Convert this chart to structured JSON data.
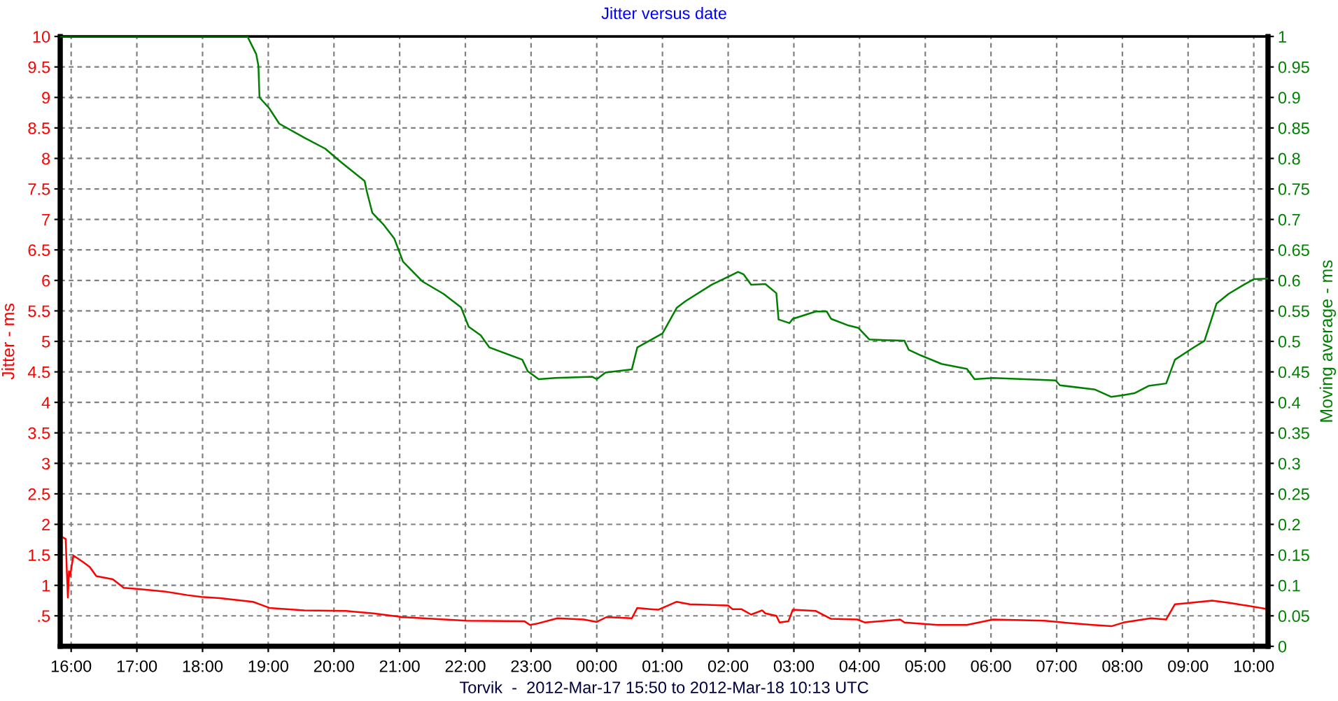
{
  "chart_data": {
    "type": "line",
    "title": "Jitter versus date",
    "xlabel": "Torvik  -  2012-Mar-17 15:50 to 2012-Mar-18 10:13 UTC",
    "ylabel": "Jitter - ms",
    "y2label": "Moving average - ms",
    "grid": true,
    "xlim": [
      "2012-03-17T15:50",
      "2012-03-18T10:13"
    ],
    "xticks": [
      {
        "value": "2012-03-17T16:00",
        "label": "16:00"
      },
      {
        "value": "2012-03-17T17:00",
        "label": "17:00"
      },
      {
        "value": "2012-03-17T18:00",
        "label": "18:00"
      },
      {
        "value": "2012-03-17T19:00",
        "label": "19:00"
      },
      {
        "value": "2012-03-17T20:00",
        "label": "20:00"
      },
      {
        "value": "2012-03-17T21:00",
        "label": "21:00"
      },
      {
        "value": "2012-03-17T22:00",
        "label": "22:00"
      },
      {
        "value": "2012-03-17T23:00",
        "label": "23:00"
      },
      {
        "value": "2012-03-18T00:00",
        "label": "00:00"
      },
      {
        "value": "2012-03-18T01:00",
        "label": "01:00"
      },
      {
        "value": "2012-03-18T02:00",
        "label": "02:00"
      },
      {
        "value": "2012-03-18T03:00",
        "label": "03:00"
      },
      {
        "value": "2012-03-18T04:00",
        "label": "04:00"
      },
      {
        "value": "2012-03-18T05:00",
        "label": "05:00"
      },
      {
        "value": "2012-03-18T06:00",
        "label": "06:00"
      },
      {
        "value": "2012-03-18T07:00",
        "label": "07:00"
      },
      {
        "value": "2012-03-18T08:00",
        "label": "08:00"
      },
      {
        "value": "2012-03-18T09:00",
        "label": "09:00"
      },
      {
        "value": "2012-03-18T10:00",
        "label": "10:00"
      }
    ],
    "ylim": [
      0,
      10
    ],
    "yticks": [
      {
        "value": 0.5,
        "label": ".5"
      },
      1,
      1.5,
      2,
      2.5,
      3,
      3.5,
      4,
      4.5,
      5,
      5.5,
      6,
      6.5,
      7,
      7.5,
      8,
      8.5,
      9,
      9.5,
      10
    ],
    "y2lim": [
      0,
      1
    ],
    "y2ticks": [
      0,
      0.05,
      0.1,
      0.15,
      0.2,
      0.25,
      0.3,
      0.35,
      0.4,
      0.45,
      0.5,
      0.55,
      0.6,
      0.65,
      0.7,
      0.75,
      0.8,
      0.85,
      0.9,
      0.95,
      1
    ],
    "series": [
      {
        "color": "#ff0000",
        "x": [
          "2012-03-17T15:50",
          "2012-03-17T15:55",
          "2012-03-17T15:56",
          "2012-03-17T15:57",
          "2012-03-17T15:58",
          "2012-03-17T15:59",
          "2012-03-17T16:02",
          "2012-03-17T16:11",
          "2012-03-17T16:17",
          "2012-03-17T16:23",
          "2012-03-17T16:38",
          "2012-03-17T16:43",
          "2012-03-17T16:48",
          "2012-03-17T17:02",
          "2012-03-17T17:25",
          "2012-03-17T17:46",
          "2012-03-17T17:59",
          "2012-03-17T18:16",
          "2012-03-17T18:46",
          "2012-03-17T18:52",
          "2012-03-17T19:01",
          "2012-03-17T19:33",
          "2012-03-17T20:11",
          "2012-03-17T20:36",
          "2012-03-17T21:02",
          "2012-03-17T22:01",
          "2012-03-17T22:54",
          "2012-03-17T22:59",
          "2012-03-17T23:05",
          "2012-03-17T23:24",
          "2012-03-17T23:48",
          "2012-03-18T00:00",
          "2012-03-18T00:09",
          "2012-03-18T00:32",
          "2012-03-18T00:37",
          "2012-03-18T00:49",
          "2012-03-18T00:56",
          "2012-03-18T01:13",
          "2012-03-18T01:25",
          "2012-03-18T02:00",
          "2012-03-18T02:04",
          "2012-03-18T02:12",
          "2012-03-18T02:21",
          "2012-03-18T02:31",
          "2012-03-18T02:34",
          "2012-03-18T02:44",
          "2012-03-18T02:47",
          "2012-03-18T02:55",
          "2012-03-18T02:59",
          "2012-03-18T03:20",
          "2012-03-18T03:34",
          "2012-03-18T03:58",
          "2012-03-18T04:05",
          "2012-03-18T04:37",
          "2012-03-18T04:41",
          "2012-03-18T05:11",
          "2012-03-18T05:38",
          "2012-03-18T06:02",
          "2012-03-18T06:49",
          "2012-03-18T07:06",
          "2012-03-18T07:33",
          "2012-03-18T07:50",
          "2012-03-18T08:01",
          "2012-03-18T08:26",
          "2012-03-18T08:40",
          "2012-03-18T08:48",
          "2012-03-18T09:00",
          "2012-03-18T09:22",
          "2012-03-18T09:39",
          "2012-03-18T10:13"
        ],
        "values": [
          1.81,
          1.76,
          1.26,
          0.8,
          1.23,
          1.15,
          1.49,
          1.38,
          1.3,
          1.15,
          1.1,
          1.03,
          0.96,
          0.94,
          0.9,
          0.84,
          0.81,
          0.79,
          0.73,
          0.69,
          0.63,
          0.59,
          0.58,
          0.54,
          0.48,
          0.42,
          0.41,
          0.35,
          0.37,
          0.46,
          0.44,
          0.4,
          0.48,
          0.46,
          0.63,
          0.61,
          0.6,
          0.73,
          0.69,
          0.67,
          0.61,
          0.61,
          0.52,
          0.59,
          0.54,
          0.5,
          0.39,
          0.41,
          0.6,
          0.58,
          0.45,
          0.44,
          0.39,
          0.44,
          0.39,
          0.35,
          0.35,
          0.44,
          0.42,
          0.39,
          0.35,
          0.33,
          0.39,
          0.46,
          0.44,
          0.69,
          0.71,
          0.75,
          0.71,
          0.61
        ]
      },
      {
        "color": "#008000",
        "axis": "y2",
        "x": [
          "2012-03-17T15:50",
          "2012-03-17T18:41",
          "2012-03-17T18:49",
          "2012-03-17T18:51",
          "2012-03-17T18:52",
          "2012-03-17T19:01",
          "2012-03-17T19:10",
          "2012-03-17T19:33",
          "2012-03-17T19:52",
          "2012-03-17T20:07",
          "2012-03-17T20:28",
          "2012-03-17T20:30",
          "2012-03-17T20:35",
          "2012-03-17T20:45",
          "2012-03-17T20:55",
          "2012-03-17T21:03",
          "2012-03-17T21:21",
          "2012-03-17T21:40",
          "2012-03-17T21:56",
          "2012-03-17T22:03",
          "2012-03-17T22:14",
          "2012-03-17T22:22",
          "2012-03-17T22:52",
          "2012-03-17T22:57",
          "2012-03-17T23:07",
          "2012-03-17T23:22",
          "2012-03-17T23:56",
          "2012-03-18T00:00",
          "2012-03-18T00:08",
          "2012-03-18T00:32",
          "2012-03-18T00:37",
          "2012-03-18T01:00",
          "2012-03-18T01:13",
          "2012-03-18T01:21",
          "2012-03-18T01:45",
          "2012-03-18T02:00",
          "2012-03-18T02:09",
          "2012-03-18T02:14",
          "2012-03-18T02:21",
          "2012-03-18T02:34",
          "2012-03-18T02:44",
          "2012-03-18T02:46",
          "2012-03-18T02:56",
          "2012-03-18T02:59",
          "2012-03-18T03:20",
          "2012-03-18T03:30",
          "2012-03-18T03:34",
          "2012-03-18T03:50",
          "2012-03-18T03:59",
          "2012-03-18T04:09",
          "2012-03-18T04:41",
          "2012-03-18T04:45",
          "2012-03-18T04:56",
          "2012-03-18T05:15",
          "2012-03-18T05:38",
          "2012-03-18T05:45",
          "2012-03-18T06:02",
          "2012-03-18T06:59",
          "2012-03-18T07:03",
          "2012-03-18T07:35",
          "2012-03-18T07:50",
          "2012-03-18T08:01",
          "2012-03-18T08:11",
          "2012-03-18T08:24",
          "2012-03-18T08:40",
          "2012-03-18T08:48",
          "2012-03-18T09:05",
          "2012-03-18T09:15",
          "2012-03-18T09:26",
          "2012-03-18T09:37",
          "2012-03-18T09:51",
          "2012-03-18T10:00",
          "2012-03-18T10:13"
        ],
        "values": [
          1,
          1,
          0.971,
          0.952,
          0.9,
          0.882,
          0.857,
          0.834,
          0.816,
          0.793,
          0.763,
          0.746,
          0.711,
          0.692,
          0.669,
          0.631,
          0.598,
          0.578,
          0.556,
          0.524,
          0.51,
          0.49,
          0.47,
          0.451,
          0.438,
          0.44,
          0.442,
          0.438,
          0.449,
          0.454,
          0.49,
          0.513,
          0.555,
          0.566,
          0.593,
          0.606,
          0.614,
          0.61,
          0.593,
          0.594,
          0.579,
          0.536,
          0.53,
          0.537,
          0.549,
          0.549,
          0.537,
          0.526,
          0.522,
          0.503,
          0.501,
          0.486,
          0.477,
          0.463,
          0.455,
          0.438,
          0.44,
          0.436,
          0.428,
          0.421,
          0.409,
          0.412,
          0.415,
          0.427,
          0.431,
          0.47,
          0.49,
          0.501,
          0.562,
          0.578,
          0.593,
          0.602,
          0.603
        ]
      }
    ]
  }
}
